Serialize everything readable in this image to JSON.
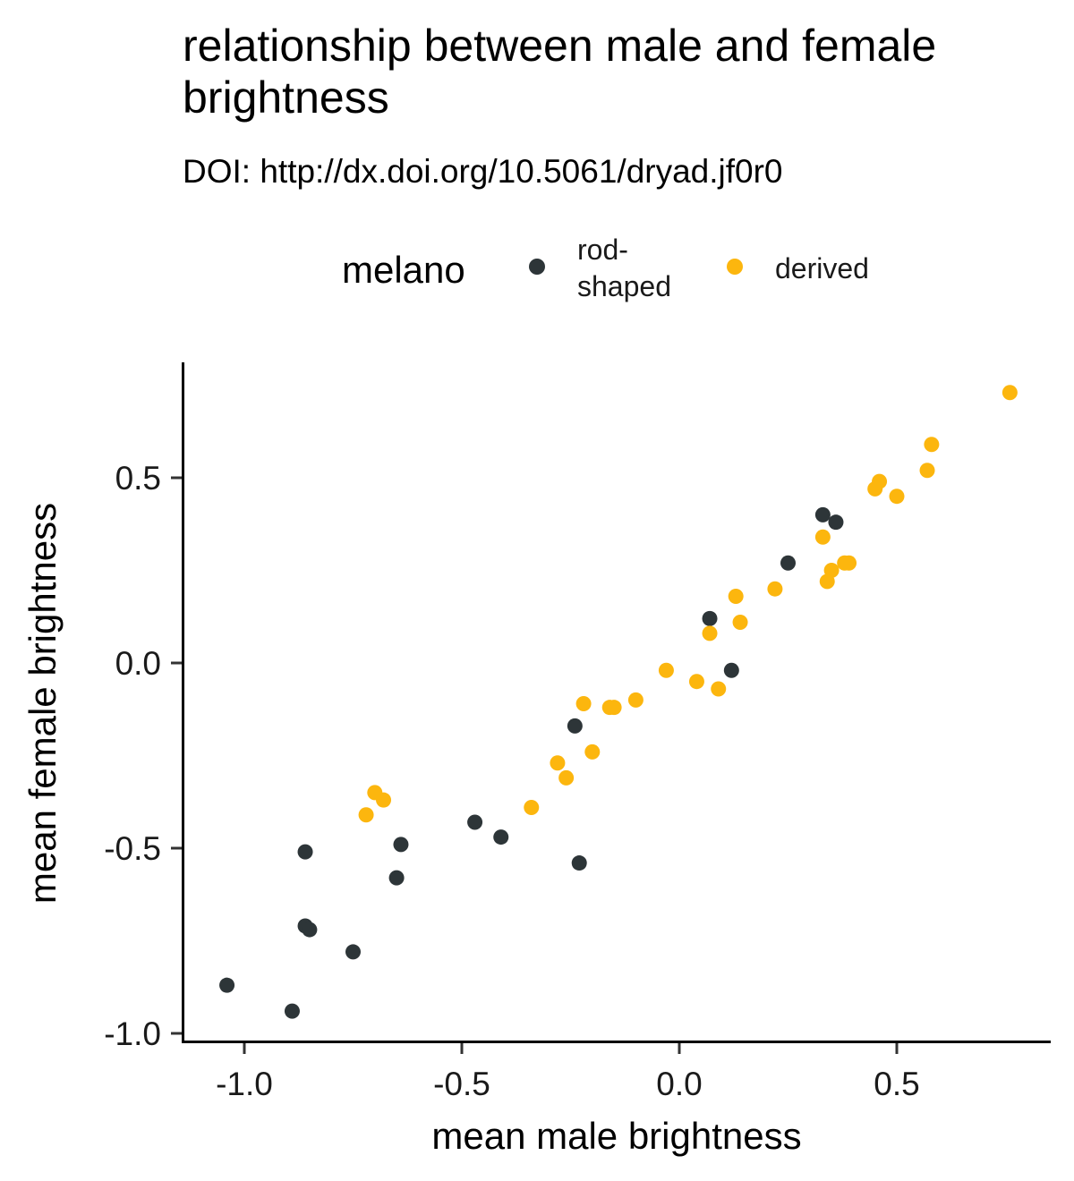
{
  "chart_data": {
    "type": "scatter",
    "title": "relationship between male and female brightness",
    "subtitle": "DOI: http://dx.doi.org/10.5061/dryad.jf0r0",
    "xlabel": "mean male brightness",
    "ylabel": "mean female brightness",
    "xlim": [
      -1.12,
      0.85
    ],
    "ylim": [
      -1.02,
      0.81
    ],
    "x_ticks": [
      -1.0,
      -0.5,
      0.0,
      0.5
    ],
    "x_tick_labels": [
      "-1.0",
      "-0.5",
      "0.0",
      "0.5"
    ],
    "y_ticks": [
      -1.0,
      -0.5,
      0.0,
      0.5
    ],
    "y_tick_labels": [
      "-1.0",
      "-0.5",
      "0.0",
      "0.5"
    ],
    "grid": false,
    "legend": {
      "title": "melano",
      "position": "top",
      "entries": [
        {
          "label_lines": [
            "rod-",
            "shaped"
          ],
          "color": "#2d3538"
        },
        {
          "label_lines": [
            "derived"
          ],
          "color": "#fcb60e"
        }
      ]
    },
    "series": [
      {
        "name": "rod-shaped",
        "color": "#2d3538",
        "points": [
          [
            -1.04,
            -0.87
          ],
          [
            -0.89,
            -0.94
          ],
          [
            -0.86,
            -0.51
          ],
          [
            -0.86,
            -0.71
          ],
          [
            -0.85,
            -0.72
          ],
          [
            -0.75,
            -0.78
          ],
          [
            -0.65,
            -0.58
          ],
          [
            -0.64,
            -0.49
          ],
          [
            -0.47,
            -0.43
          ],
          [
            -0.41,
            -0.47
          ],
          [
            -0.24,
            -0.17
          ],
          [
            -0.23,
            -0.54
          ],
          [
            0.07,
            0.12
          ],
          [
            0.12,
            -0.02
          ],
          [
            0.25,
            0.27
          ],
          [
            0.33,
            0.4
          ],
          [
            0.36,
            0.38
          ]
        ]
      },
      {
        "name": "derived",
        "color": "#fcb60e",
        "points": [
          [
            -0.72,
            -0.41
          ],
          [
            -0.7,
            -0.35
          ],
          [
            -0.68,
            -0.37
          ],
          [
            -0.34,
            -0.39
          ],
          [
            -0.28,
            -0.27
          ],
          [
            -0.26,
            -0.31
          ],
          [
            -0.22,
            -0.11
          ],
          [
            -0.2,
            -0.24
          ],
          [
            -0.16,
            -0.12
          ],
          [
            -0.15,
            -0.12
          ],
          [
            -0.1,
            -0.1
          ],
          [
            -0.03,
            -0.02
          ],
          [
            0.04,
            -0.05
          ],
          [
            0.07,
            0.08
          ],
          [
            0.09,
            -0.07
          ],
          [
            0.13,
            0.18
          ],
          [
            0.14,
            0.11
          ],
          [
            0.22,
            0.2
          ],
          [
            0.33,
            0.34
          ],
          [
            0.34,
            0.22
          ],
          [
            0.35,
            0.25
          ],
          [
            0.38,
            0.27
          ],
          [
            0.39,
            0.27
          ],
          [
            0.45,
            0.47
          ],
          [
            0.46,
            0.49
          ],
          [
            0.5,
            0.45
          ],
          [
            0.57,
            0.52
          ],
          [
            0.58,
            0.59
          ],
          [
            0.76,
            0.73
          ]
        ]
      }
    ]
  }
}
